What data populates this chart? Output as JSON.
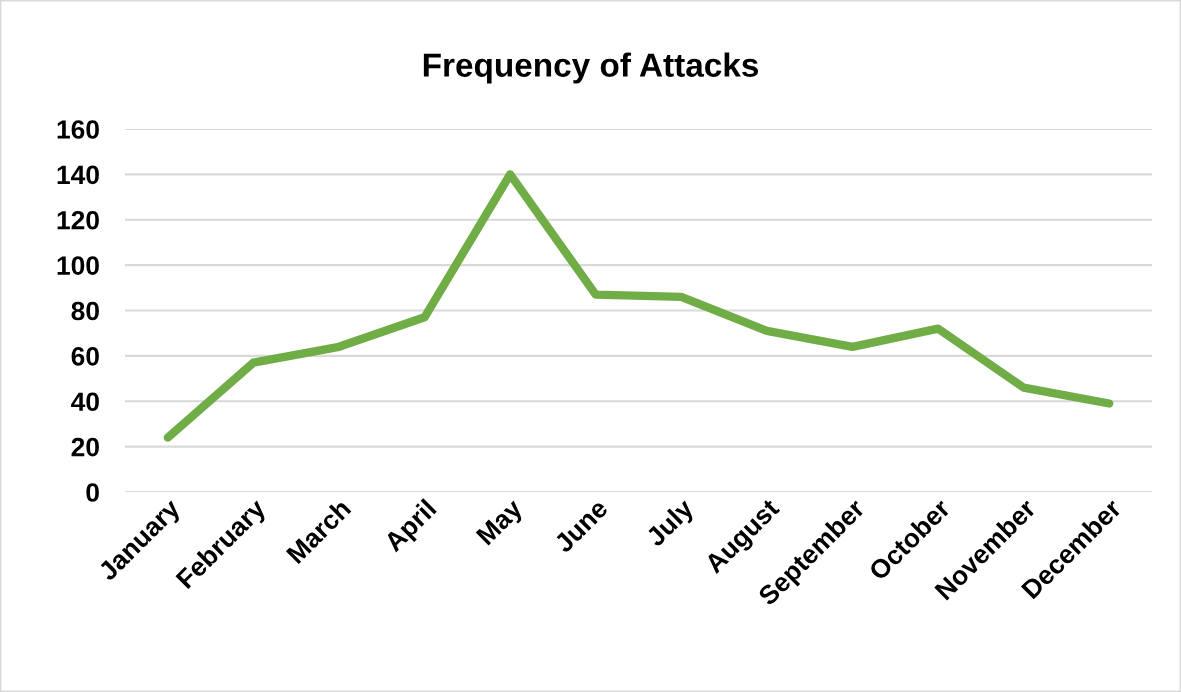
{
  "chart_data": {
    "type": "line",
    "title": "Frequency of Attacks",
    "categories": [
      "January",
      "February",
      "March",
      "April",
      "May",
      "June",
      "July",
      "August",
      "September",
      "October",
      "November",
      "December"
    ],
    "series": [
      {
        "color": "#70ad47",
        "values": [
          24,
          57,
          64,
          77,
          140,
          87,
          86,
          71,
          64,
          72,
          46,
          39
        ]
      }
    ],
    "ylim": [
      0,
      160
    ],
    "yticks": [
      0,
      20,
      40,
      60,
      80,
      100,
      120,
      140,
      160
    ],
    "grid": "y",
    "legend": false,
    "marker": "none",
    "line_style": "solid"
  }
}
